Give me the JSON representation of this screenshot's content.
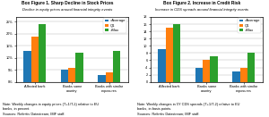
{
  "chart_data": [
    {
      "type": "bar",
      "title": "Box Figure 1. Sharp Decline in Stock Prices",
      "subtitle": "Decline in equity prices around financial integrity events",
      "categories": [
        "Affected bank",
        "Banks same\ncountry",
        "Banks with similar\nexposures"
      ],
      "series": [
        {
          "name": "=Average",
          "values": [
            13,
            5,
            3
          ]
        },
        {
          "name": "Q1",
          "values": [
            19,
            6,
            4
          ]
        },
        {
          "name": "+Max",
          "values": [
            24,
            12,
            13
          ]
        }
      ],
      "ylim": [
        0,
        27
      ],
      "yticks": [
        {
          "value": 0,
          "label": "0%"
        },
        {
          "value": 5,
          "label": "5%"
        },
        {
          "value": 10,
          "label": "10%"
        },
        {
          "value": 15,
          "label": "15%"
        },
        {
          "value": 20,
          "label": "20%"
        },
        {
          "value": 25,
          "label": "25%"
        }
      ],
      "grid": true,
      "legend": "upper right",
      "note": "Note: Weekly changes in equity prices (T+1/T-2) relative to EU\nbanks, in percent.",
      "source": "Sources: Refinitiv Datastream; IMF staff."
    },
    {
      "type": "bar",
      "title": "Box Figure 2. Increase in Credit Risk",
      "subtitle": "Increase in CDS spreads around financial integrity events",
      "categories": [
        "Affected bank",
        "Banks same\ncountry",
        "Banks with similar\nexposures"
      ],
      "series": [
        {
          "name": "=Average",
          "values": [
            9,
            4,
            3
          ]
        },
        {
          "name": "Q1",
          "values": [
            15,
            6,
            4
          ]
        },
        {
          "name": "+Max",
          "values": [
            16,
            7,
            8
          ]
        }
      ],
      "ylim": [
        0,
        18
      ],
      "yticks": [
        0,
        2,
        4,
        6,
        8,
        10,
        12,
        14,
        16,
        18
      ],
      "grid": true,
      "legend": "upper right",
      "note": "Note: Weekly changes in 5Y CDS spreads (T+1/T-2) relative to EU\nbanks, in basis points.",
      "source": "Sources: Refinitiv Datastream; IMF staff."
    }
  ]
}
